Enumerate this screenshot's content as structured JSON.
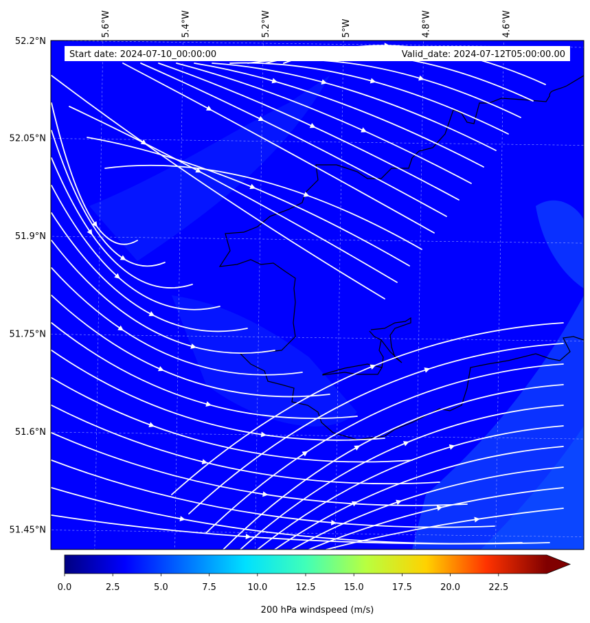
{
  "chart_data": {
    "type": "streamline",
    "title_left": "Start date: 2024-07-10_00:00:00",
    "title_right": "Valid_date: 2024-07-12T05:00:00.00",
    "lon_ticks": [
      "5.6°W",
      "5.4°W",
      "5.2°W",
      "5°W",
      "4.8°W",
      "4.6°W"
    ],
    "lat_ticks": [
      "52.2°N",
      "52.05°N",
      "51.9°N",
      "51.75°N",
      "51.6°N",
      "51.45°N"
    ],
    "lon_values": [
      -5.6,
      -5.4,
      -5.2,
      -5.0,
      -4.8,
      -4.6
    ],
    "lat_values": [
      52.2,
      52.05,
      51.9,
      51.75,
      51.6,
      51.45
    ],
    "lon_range": [
      -5.73,
      -4.4
    ],
    "lat_range": [
      51.42,
      52.2
    ],
    "colorbar": {
      "label": "200 hPa windspeed (m/s)",
      "ticks": [
        "0.0",
        "2.5",
        "5.0",
        "7.5",
        "10.0",
        "12.5",
        "15.0",
        "17.5",
        "20.0",
        "22.5"
      ],
      "tick_values": [
        0,
        2.5,
        5,
        7.5,
        10,
        12.5,
        15,
        17.5,
        20,
        22.5
      ],
      "range": [
        0,
        25
      ],
      "extend": "max",
      "colormap": "jet"
    },
    "field_range_m_s": [
      3.0,
      5.5
    ],
    "flow_direction": "southeast to east",
    "gridlines": true,
    "colors": {
      "field_low": "#0000ff",
      "field_high": "#0a3cff",
      "streamlines": "#ffffff",
      "coastline": "#000000"
    }
  }
}
